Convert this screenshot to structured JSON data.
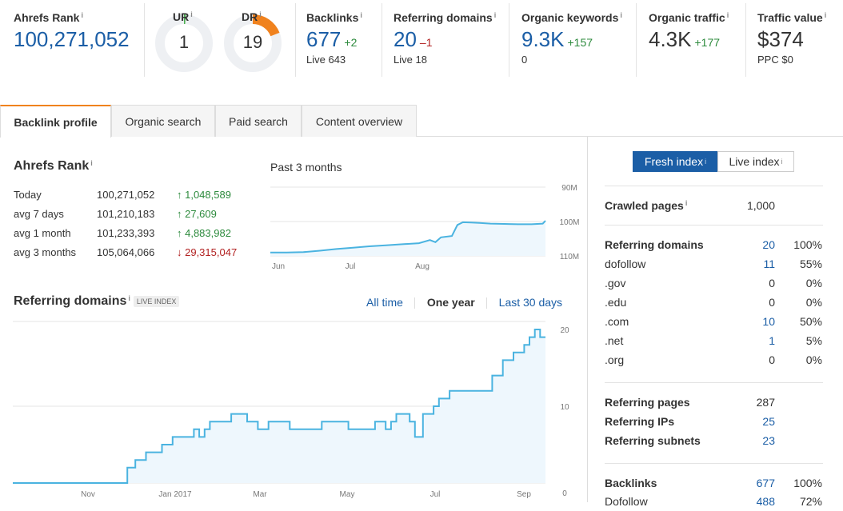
{
  "metrics": {
    "ahrefs_rank": {
      "label": "Ahrefs Rank",
      "value": "100,271,052"
    },
    "ur": {
      "label": "UR",
      "value": "1",
      "fraction": 0.01
    },
    "dr": {
      "label": "DR",
      "value": "19",
      "fraction": 0.19
    },
    "backlinks": {
      "label": "Backlinks",
      "value": "677",
      "delta": "+2",
      "sub": "Live 643"
    },
    "referring_domains": {
      "label": "Referring domains",
      "value": "20",
      "delta": "–1",
      "sub": "Live 18"
    },
    "organic_keywords": {
      "label": "Organic keywords",
      "value": "9.3K",
      "delta": "+157",
      "sub": "0"
    },
    "organic_traffic": {
      "label": "Organic traffic",
      "value": "4.3K",
      "delta": "+177"
    },
    "traffic_value": {
      "label": "Traffic value",
      "value": "$374",
      "sub": "PPC $0"
    }
  },
  "info_glyph": "i",
  "tabs": [
    {
      "label": "Backlink profile",
      "active": true
    },
    {
      "label": "Organic search"
    },
    {
      "label": "Paid search"
    },
    {
      "label": "Content overview"
    }
  ],
  "rank_section": {
    "title": "Ahrefs Rank",
    "period": "Past 3 months",
    "rows": [
      {
        "label": "Today",
        "value": "100,271,052",
        "delta": "↑ 1,048,589",
        "dir": "up"
      },
      {
        "label": "avg 7 days",
        "value": "101,210,183",
        "delta": "↑ 27,609",
        "dir": "up"
      },
      {
        "label": "avg 1 month",
        "value": "101,233,393",
        "delta": "↑ 4,883,982",
        "dir": "up"
      },
      {
        "label": "avg 3 months",
        "value": "105,064,066",
        "delta": "↓ 29,315,047",
        "dir": "down"
      }
    ]
  },
  "refdom_section": {
    "title": "Referring domains",
    "badge": "LIVE INDEX",
    "ranges": [
      "All time",
      "One year",
      "Last 30 days"
    ],
    "selected_range": "One year"
  },
  "index_toggle": {
    "fresh": "Fresh index",
    "live": "Live index"
  },
  "stats": {
    "crawled_pages": {
      "label": "Crawled pages",
      "value": "1,000"
    },
    "referring_domains": {
      "label": "Referring domains",
      "value": "20",
      "pct": "100%"
    },
    "rows": [
      {
        "label": "dofollow",
        "value": "11",
        "pct": "55%",
        "link": true
      },
      {
        "label": ".gov",
        "value": "0",
        "pct": "0%",
        "link": false
      },
      {
        "label": ".edu",
        "value": "0",
        "pct": "0%",
        "link": false
      },
      {
        "label": ".com",
        "value": "10",
        "pct": "50%",
        "link": true
      },
      {
        "label": ".net",
        "value": "1",
        "pct": "5%",
        "link": true
      },
      {
        "label": ".org",
        "value": "0",
        "pct": "0%",
        "link": false
      }
    ],
    "referring_pages": {
      "label": "Referring pages",
      "value": "287"
    },
    "referring_ips": {
      "label": "Referring IPs",
      "value": "25"
    },
    "referring_subnets": {
      "label": "Referring subnets",
      "value": "23"
    },
    "backlinks": {
      "label": "Backlinks",
      "value": "677",
      "pct": "100%"
    },
    "dofollow_cut": {
      "label": "Dofollow",
      "value": "488",
      "pct": "72%"
    }
  },
  "chart_data": [
    {
      "type": "line",
      "title": "Past 3 months",
      "x_ticks": [
        "Jun",
        "Jul",
        "Aug"
      ],
      "y_ticks": [
        "90M",
        "100M",
        "110M"
      ],
      "ylim": [
        90,
        110
      ],
      "y_inverted": true,
      "x": [
        0,
        0.06,
        0.12,
        0.18,
        0.24,
        0.3,
        0.36,
        0.42,
        0.48,
        0.54,
        0.58,
        0.6,
        0.62,
        0.66,
        0.68,
        0.7,
        0.73,
        0.76,
        0.8,
        0.85,
        0.9,
        0.95,
        0.99,
        1.0
      ],
      "y": [
        109.0,
        109.0,
        108.9,
        108.5,
        108.0,
        107.6,
        107.2,
        106.9,
        106.6,
        106.3,
        105.4,
        106.0,
        104.6,
        104.2,
        101.0,
        100.2,
        100.3,
        100.4,
        100.6,
        100.7,
        100.8,
        100.8,
        100.6,
        99.8
      ]
    },
    {
      "type": "area",
      "title": "Referring domains",
      "x_ticks": [
        "Nov",
        "Jan 2017",
        "Mar",
        "May",
        "Jul",
        "Sep"
      ],
      "y_ticks": [
        "20",
        "10",
        "0"
      ],
      "ylim": [
        0,
        20
      ],
      "x": [
        0,
        0.07,
        0.14,
        0.21,
        0.215,
        0.22,
        0.23,
        0.24,
        0.25,
        0.26,
        0.28,
        0.29,
        0.3,
        0.32,
        0.34,
        0.35,
        0.36,
        0.37,
        0.39,
        0.41,
        0.42,
        0.44,
        0.445,
        0.46,
        0.48,
        0.52,
        0.55,
        0.58,
        0.6,
        0.63,
        0.66,
        0.68,
        0.7,
        0.71,
        0.72,
        0.74,
        0.745,
        0.75,
        0.755,
        0.77,
        0.78,
        0.79,
        0.8,
        0.81,
        0.82,
        0.83,
        0.84,
        0.85,
        0.86,
        0.87,
        0.88,
        0.89,
        0.9,
        0.91,
        0.92,
        0.93,
        0.94,
        0.95,
        0.96,
        0.97,
        0.98,
        0.99,
        1.0
      ],
      "y": [
        0,
        0,
        0,
        0,
        2,
        2,
        3,
        3,
        4,
        4,
        5,
        5,
        6,
        6,
        7,
        6,
        7,
        8,
        8,
        9,
        9,
        8,
        8,
        7,
        8,
        7,
        7,
        8,
        8,
        7,
        7,
        8,
        7,
        8,
        9,
        9,
        8,
        8,
        6,
        9,
        9,
        10,
        11,
        11,
        12,
        12,
        12,
        12,
        12,
        12,
        12,
        12,
        14,
        14,
        16,
        16,
        17,
        17,
        18,
        19,
        20,
        19,
        19
      ]
    }
  ]
}
